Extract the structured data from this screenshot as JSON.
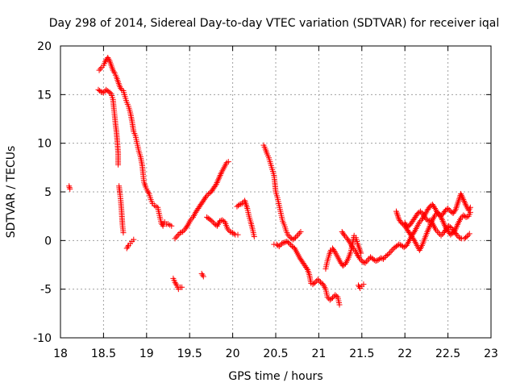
{
  "chart_data": {
    "type": "scatter",
    "title": "Day 298 of 2014, Sidereal Day-to-day VTEC variation (SDTVAR) for receiver iqal",
    "xlabel": "GPS time / hours",
    "ylabel": "SDTVAR / TECUs",
    "xlim": [
      18,
      23
    ],
    "ylim": [
      -10,
      20
    ],
    "xticks": [
      "18",
      "18.5",
      "19",
      "19.5",
      "20",
      "20.5",
      "21",
      "21.5",
      "22",
      "22.5",
      "23"
    ],
    "yticks": [
      "-10",
      "-5",
      "0",
      "5",
      "10",
      "15",
      "20"
    ],
    "grid": true,
    "marker_color": "#ff0000",
    "marker": "plus",
    "segments": [
      [
        [
          18.1,
          5.6
        ],
        [
          18.11,
          5.3
        ]
      ],
      [
        [
          18.45,
          17.5
        ],
        [
          18.48,
          17.8
        ],
        [
          18.5,
          18.0
        ],
        [
          18.52,
          18.4
        ],
        [
          18.55,
          18.8
        ],
        [
          18.57,
          18.5
        ],
        [
          18.59,
          18.0
        ],
        [
          18.61,
          17.5
        ],
        [
          18.63,
          17.2
        ],
        [
          18.65,
          16.8
        ],
        [
          18.67,
          16.3
        ],
        [
          18.69,
          15.8
        ],
        [
          18.71,
          15.5
        ],
        [
          18.73,
          15.4
        ],
        [
          18.75,
          14.8
        ],
        [
          18.77,
          14.2
        ],
        [
          18.79,
          13.8
        ],
        [
          18.81,
          13.2
        ],
        [
          18.83,
          12.3
        ],
        [
          18.85,
          11.2
        ],
        [
          18.87,
          10.8
        ],
        [
          18.89,
          10.0
        ],
        [
          18.91,
          9.2
        ],
        [
          18.93,
          8.6
        ],
        [
          18.95,
          7.7
        ],
        [
          18.96,
          6.8
        ],
        [
          18.97,
          6.0
        ],
        [
          18.99,
          5.5
        ],
        [
          19.01,
          5.1
        ],
        [
          19.03,
          4.8
        ],
        [
          19.05,
          4.2
        ],
        [
          19.07,
          3.8
        ],
        [
          19.09,
          3.6
        ],
        [
          19.11,
          3.5
        ],
        [
          19.13,
          3.4
        ],
        [
          19.15,
          2.6
        ],
        [
          19.17,
          1.8
        ],
        [
          19.19,
          1.5
        ],
        [
          19.21,
          1.9
        ],
        [
          19.23,
          1.7
        ],
        [
          19.25,
          1.7
        ],
        [
          19.27,
          1.6
        ],
        [
          19.29,
          1.5
        ]
      ],
      [
        [
          18.44,
          15.5
        ],
        [
          18.47,
          15.3
        ],
        [
          18.5,
          15.2
        ],
        [
          18.53,
          15.5
        ],
        [
          18.56,
          15.3
        ],
        [
          18.59,
          15.1
        ],
        [
          18.61,
          14.5
        ],
        [
          18.62,
          13.6
        ],
        [
          18.63,
          12.8
        ],
        [
          18.64,
          11.9
        ],
        [
          18.65,
          11.2
        ],
        [
          18.66,
          10.2
        ],
        [
          18.67,
          9.0
        ],
        [
          18.67,
          7.8
        ]
      ],
      [
        [
          18.68,
          5.6
        ],
        [
          18.69,
          4.9
        ],
        [
          18.7,
          4.1
        ],
        [
          18.71,
          3.0
        ],
        [
          18.72,
          1.6
        ],
        [
          18.73,
          0.8
        ]
      ],
      [
        [
          18.77,
          -0.8
        ],
        [
          18.79,
          -0.5
        ],
        [
          18.81,
          -0.3
        ],
        [
          18.83,
          -0.1
        ],
        [
          18.85,
          0.1
        ]
      ],
      [
        [
          19.31,
          -3.9
        ],
        [
          19.33,
          -4.3
        ],
        [
          19.35,
          -4.6
        ],
        [
          19.37,
          -5.0
        ],
        [
          19.39,
          -4.8
        ],
        [
          19.41,
          -4.8
        ]
      ],
      [
        [
          19.33,
          0.2
        ],
        [
          19.36,
          0.5
        ],
        [
          19.39,
          0.8
        ],
        [
          19.42,
          0.9
        ],
        [
          19.45,
          1.2
        ],
        [
          19.48,
          1.6
        ],
        [
          19.51,
          2.1
        ],
        [
          19.54,
          2.4
        ],
        [
          19.57,
          2.9
        ],
        [
          19.6,
          3.3
        ],
        [
          19.63,
          3.7
        ],
        [
          19.66,
          4.1
        ],
        [
          19.69,
          4.5
        ],
        [
          19.72,
          4.8
        ],
        [
          19.75,
          5.0
        ],
        [
          19.78,
          5.4
        ],
        [
          19.81,
          5.8
        ],
        [
          19.84,
          6.4
        ],
        [
          19.87,
          7.0
        ],
        [
          19.9,
          7.5
        ],
        [
          19.93,
          8.0
        ],
        [
          19.95,
          8.1
        ]
      ],
      [
        [
          19.64,
          -3.4
        ],
        [
          19.66,
          -3.7
        ]
      ],
      [
        [
          19.7,
          2.4
        ],
        [
          19.73,
          2.2
        ],
        [
          19.76,
          2.0
        ],
        [
          19.79,
          1.7
        ],
        [
          19.82,
          1.5
        ],
        [
          19.85,
          2.0
        ],
        [
          19.88,
          2.1
        ],
        [
          19.91,
          1.9
        ],
        [
          19.94,
          1.2
        ],
        [
          19.97,
          0.9
        ],
        [
          20.0,
          0.8
        ],
        [
          20.03,
          0.6
        ],
        [
          20.06,
          0.6
        ]
      ],
      [
        [
          20.05,
          3.5
        ],
        [
          20.08,
          3.7
        ],
        [
          20.11,
          3.8
        ],
        [
          20.14,
          4.1
        ],
        [
          20.17,
          3.3
        ],
        [
          20.19,
          2.5
        ],
        [
          20.21,
          1.9
        ],
        [
          20.23,
          1.2
        ],
        [
          20.25,
          0.4
        ]
      ],
      [
        [
          20.36,
          9.8
        ],
        [
          20.38,
          9.4
        ],
        [
          20.4,
          8.9
        ],
        [
          20.42,
          8.5
        ],
        [
          20.44,
          7.9
        ],
        [
          20.46,
          7.3
        ],
        [
          20.48,
          6.7
        ],
        [
          20.49,
          5.9
        ],
        [
          20.5,
          5.0
        ],
        [
          20.52,
          4.4
        ],
        [
          20.54,
          3.6
        ],
        [
          20.56,
          2.8
        ],
        [
          20.58,
          2.0
        ],
        [
          20.6,
          1.6
        ],
        [
          20.62,
          1.0
        ],
        [
          20.64,
          0.6
        ],
        [
          20.67,
          0.3
        ],
        [
          20.7,
          0.1
        ],
        [
          20.73,
          0.3
        ],
        [
          20.76,
          0.6
        ],
        [
          20.79,
          0.9
        ]
      ],
      [
        [
          20.48,
          -0.4
        ],
        [
          20.51,
          -0.4
        ],
        [
          20.54,
          -0.6
        ],
        [
          20.57,
          -0.3
        ],
        [
          20.6,
          -0.2
        ],
        [
          20.63,
          -0.1
        ],
        [
          20.66,
          -0.3
        ],
        [
          20.69,
          -0.6
        ],
        [
          20.72,
          -0.8
        ],
        [
          20.75,
          -1.3
        ],
        [
          20.78,
          -1.8
        ],
        [
          20.81,
          -2.2
        ],
        [
          20.84,
          -2.6
        ],
        [
          20.87,
          -3.0
        ],
        [
          20.89,
          -3.5
        ],
        [
          20.91,
          -4.4
        ],
        [
          20.93,
          -4.5
        ],
        [
          20.96,
          -4.3
        ],
        [
          20.99,
          -4.0
        ],
        [
          21.02,
          -4.3
        ],
        [
          21.05,
          -4.5
        ],
        [
          21.08,
          -5.0
        ],
        [
          21.1,
          -5.8
        ],
        [
          21.13,
          -6.1
        ],
        [
          21.16,
          -5.9
        ],
        [
          21.19,
          -5.6
        ],
        [
          21.22,
          -5.8
        ],
        [
          21.24,
          -6.6
        ]
      ],
      [
        [
          21.08,
          -2.9
        ],
        [
          21.1,
          -2.1
        ],
        [
          21.12,
          -1.5
        ],
        [
          21.14,
          -1.0
        ],
        [
          21.16,
          -0.8
        ],
        [
          21.19,
          -1.2
        ],
        [
          21.22,
          -1.7
        ],
        [
          21.25,
          -2.2
        ],
        [
          21.28,
          -2.6
        ],
        [
          21.31,
          -2.4
        ],
        [
          21.34,
          -1.9
        ],
        [
          21.37,
          -1.2
        ],
        [
          21.39,
          -0.4
        ],
        [
          21.41,
          0.5
        ],
        [
          21.43,
          0.3
        ],
        [
          21.45,
          -0.3
        ],
        [
          21.47,
          -0.8
        ],
        [
          21.49,
          -1.3
        ]
      ],
      [
        [
          21.27,
          0.9
        ],
        [
          21.3,
          0.5
        ],
        [
          21.33,
          0.2
        ],
        [
          21.36,
          -0.2
        ],
        [
          21.39,
          -0.7
        ],
        [
          21.42,
          -1.0
        ],
        [
          21.45,
          -1.5
        ],
        [
          21.48,
          -1.9
        ],
        [
          21.51,
          -2.2
        ],
        [
          21.54,
          -2.3
        ],
        [
          21.57,
          -2.0
        ],
        [
          21.6,
          -1.7
        ],
        [
          21.63,
          -1.9
        ],
        [
          21.66,
          -2.1
        ],
        [
          21.69,
          -2.0
        ],
        [
          21.72,
          -1.8
        ],
        [
          21.75,
          -1.9
        ],
        [
          21.78,
          -1.6
        ],
        [
          21.81,
          -1.4
        ],
        [
          21.84,
          -1.1
        ],
        [
          21.87,
          -0.8
        ],
        [
          21.9,
          -0.6
        ],
        [
          21.93,
          -0.4
        ],
        [
          21.96,
          -0.5
        ],
        [
          21.99,
          -0.7
        ],
        [
          22.02,
          -0.5
        ],
        [
          22.05,
          0.0
        ],
        [
          22.08,
          0.5
        ],
        [
          22.11,
          0.9
        ],
        [
          22.14,
          1.4
        ],
        [
          22.17,
          1.9
        ],
        [
          22.2,
          2.2
        ],
        [
          22.23,
          2.6
        ],
        [
          22.26,
          3.1
        ],
        [
          22.29,
          3.5
        ],
        [
          22.32,
          3.7
        ],
        [
          22.35,
          3.3
        ],
        [
          22.38,
          2.8
        ],
        [
          22.41,
          2.5
        ],
        [
          22.44,
          2.7
        ],
        [
          22.47,
          3.1
        ],
        [
          22.5,
          3.3
        ],
        [
          22.53,
          3.0
        ],
        [
          22.56,
          2.8
        ],
        [
          22.59,
          3.2
        ],
        [
          22.62,
          4.0
        ],
        [
          22.65,
          4.8
        ],
        [
          22.68,
          4.2
        ],
        [
          22.71,
          3.6
        ],
        [
          22.74,
          3.1
        ],
        [
          22.76,
          3.4
        ]
      ],
      [
        [
          21.9,
          3.0
        ],
        [
          21.93,
          2.2
        ],
        [
          21.96,
          1.8
        ],
        [
          21.99,
          1.6
        ],
        [
          22.02,
          1.2
        ],
        [
          22.05,
          0.8
        ],
        [
          22.08,
          0.4
        ],
        [
          22.11,
          0.0
        ],
        [
          22.14,
          -0.5
        ],
        [
          22.17,
          -1.0
        ],
        [
          22.2,
          -0.5
        ],
        [
          22.23,
          0.2
        ],
        [
          22.26,
          0.9
        ],
        [
          22.29,
          1.5
        ],
        [
          22.32,
          2.1
        ],
        [
          22.35,
          2.6
        ],
        [
          22.38,
          2.9
        ],
        [
          22.41,
          2.6
        ],
        [
          22.44,
          2.0
        ],
        [
          22.47,
          1.4
        ],
        [
          22.5,
          1.0
        ],
        [
          22.53,
          0.6
        ],
        [
          22.56,
          0.8
        ],
        [
          22.59,
          1.2
        ],
        [
          22.62,
          1.8
        ],
        [
          22.65,
          2.3
        ],
        [
          22.68,
          2.6
        ],
        [
          22.71,
          2.4
        ],
        [
          22.74,
          2.5
        ],
        [
          22.76,
          2.9
        ]
      ],
      [
        [
          22.0,
          1.8
        ],
        [
          22.03,
          1.4
        ],
        [
          22.06,
          1.6
        ],
        [
          22.09,
          2.0
        ],
        [
          22.12,
          2.4
        ],
        [
          22.15,
          2.8
        ],
        [
          22.18,
          3.0
        ],
        [
          22.21,
          2.7
        ],
        [
          22.24,
          2.3
        ],
        [
          22.27,
          2.0
        ],
        [
          22.3,
          2.1
        ],
        [
          22.33,
          1.6
        ],
        [
          22.36,
          1.1
        ],
        [
          22.39,
          0.8
        ],
        [
          22.42,
          0.5
        ],
        [
          22.45,
          0.8
        ],
        [
          22.48,
          1.2
        ],
        [
          22.51,
          1.5
        ],
        [
          22.54,
          1.3
        ],
        [
          22.57,
          1.0
        ],
        [
          22.6,
          0.6
        ],
        [
          22.63,
          0.3
        ],
        [
          22.66,
          0.2
        ],
        [
          22.69,
          0.2
        ],
        [
          22.72,
          0.4
        ],
        [
          22.75,
          0.7
        ]
      ],
      [
        [
          21.46,
          -4.6
        ],
        [
          21.48,
          -4.9
        ],
        [
          21.5,
          -4.7
        ],
        [
          21.52,
          -4.5
        ]
      ]
    ]
  }
}
